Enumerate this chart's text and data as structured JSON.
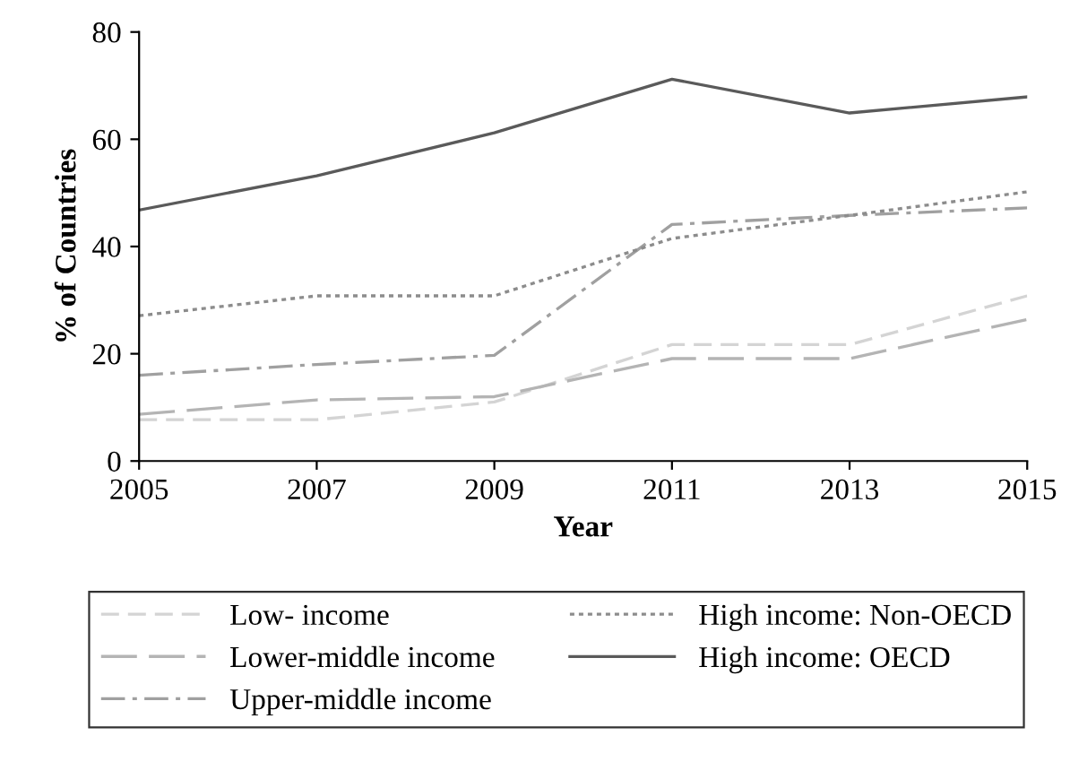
{
  "chart_data": {
    "type": "line",
    "xlabel": "Year",
    "ylabel": "% of Countries",
    "x": [
      2005,
      2007,
      2009,
      2011,
      2013,
      2015
    ],
    "xlim": [
      2005,
      2015
    ],
    "xticks": [
      2005,
      2007,
      2009,
      2011,
      2013,
      2015
    ],
    "ylim": [
      0,
      80
    ],
    "yticks": [
      0,
      20,
      40,
      60,
      80
    ],
    "grid": false,
    "legend": "bottom",
    "marker": "none",
    "series": [
      {
        "name": "Low- income",
        "color": "#d4d4d4",
        "line_style": "dashed",
        "values": [
          7.7,
          7.7,
          11,
          21.7,
          21.7,
          30.8
        ]
      },
      {
        "name": "Lower-middle income",
        "color": "#b4b4b4",
        "line_style": "longdash",
        "values": [
          8.7,
          11.4,
          12,
          19.1,
          19.1,
          26.4
        ]
      },
      {
        "name": "Upper-middle income",
        "color": "#a0a0a0",
        "line_style": "dashdot",
        "values": [
          16,
          18,
          19.7,
          44.1,
          45.8,
          47.2
        ]
      },
      {
        "name": "High income: Non-OECD",
        "color": "#8c8c8c",
        "line_style": "dotted",
        "values": [
          27.1,
          30.8,
          30.8,
          41.5,
          45.8,
          50.2
        ]
      },
      {
        "name": "High income: OECD",
        "color": "#5a5a5a",
        "line_style": "solid",
        "values": [
          46.8,
          53.2,
          61.2,
          71.2,
          64.9,
          67.9
        ]
      }
    ]
  }
}
